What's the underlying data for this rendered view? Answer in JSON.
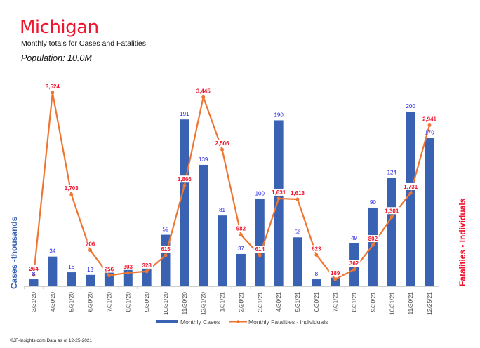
{
  "header": {
    "title": "Michigan",
    "subtitle": "Monthly totals for Cases and Fatalities",
    "population": "Population: 10.0M"
  },
  "footer": "©JF-Insights.com  Data as of 12-25-2021",
  "colors": {
    "cases": "#3a62b3",
    "fatalities": "#ef7532",
    "fatality_label": "#f0142d",
    "case_label": "#2323e6"
  },
  "chart_data": {
    "type": "bar+line",
    "title": "Michigan",
    "subtitle": "Monthly totals for Cases and Fatalities",
    "categories": [
      "3/31/20",
      "4/30/20",
      "5/31/20",
      "6/30/20",
      "7/31/20",
      "8/31/20",
      "9/30/20",
      "10/31/20",
      "11/30/20",
      "12/31/20",
      "1/31/21",
      "2/28/21",
      "3/31/21",
      "4/30/21",
      "5/31/21",
      "6/30/21",
      "7/31/21",
      "8/31/21",
      "9/30/21",
      "10/31/21",
      "11/30/21",
      "12/25/21"
    ],
    "series": [
      {
        "name": "Monthly Cases",
        "type": "bar",
        "axis": "left",
        "values": [
          8,
          34,
          16,
          13,
          20,
          22,
          24,
          59,
          191,
          139,
          81,
          37,
          100,
          190,
          56,
          8,
          10,
          49,
          90,
          124,
          200,
          170
        ],
        "labels": [
          "8",
          "34",
          "16",
          "13",
          "",
          "",
          "",
          "59",
          "191",
          "139",
          "81",
          "37",
          "100",
          "190",
          "56",
          "8",
          "",
          "49",
          "90",
          "124",
          "200",
          "170"
        ]
      },
      {
        "name": "Monthly Fatalities - individuals",
        "type": "line",
        "axis": "right",
        "values": [
          264,
          3524,
          1703,
          706,
          256,
          303,
          328,
          615,
          1866,
          3445,
          2506,
          982,
          614,
          1631,
          1618,
          623,
          189,
          362,
          802,
          1301,
          1731,
          2941
        ],
        "labels": [
          "264",
          "3,524",
          "1,703",
          "706",
          "256",
          "303",
          "328",
          "615",
          "1,866",
          "3,445",
          "2,506",
          "982",
          "614",
          "1,631",
          "1,618",
          "623",
          "189",
          "362",
          "802",
          "1,301",
          "1,731",
          "2,941"
        ]
      }
    ],
    "ylabel_left": "Cases -thousands",
    "ylabel_right": "Fatalities - Individuals",
    "ylim_left": [
      0,
      200
    ],
    "ylim_right": [
      0,
      3524
    ],
    "grid": false,
    "legend": "bottom"
  }
}
